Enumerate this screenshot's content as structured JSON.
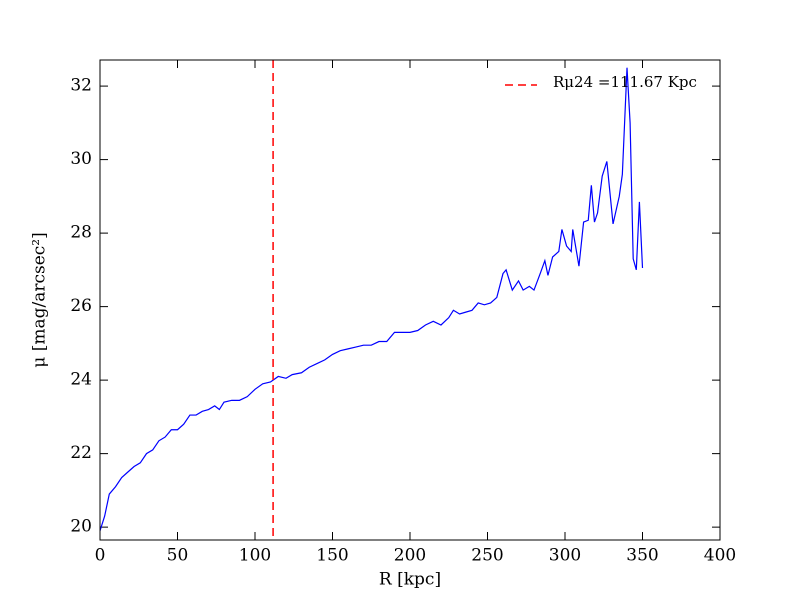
{
  "chart_data": {
    "type": "line",
    "x_label": "R [kpc]",
    "y_label": "μ [mag/arcsec²]",
    "x": [
      0,
      3,
      6,
      10,
      14,
      18,
      22,
      26,
      30,
      34,
      38,
      42,
      46,
      50,
      54,
      58,
      62,
      66,
      70,
      74,
      77,
      80,
      85,
      90,
      95,
      100,
      105,
      110,
      115,
      120,
      124,
      130,
      135,
      140,
      145,
      150,
      155,
      160,
      165,
      170,
      175,
      180,
      185,
      190,
      195,
      200,
      205,
      210,
      215,
      220,
      225,
      228,
      232,
      236,
      240,
      244,
      248,
      252,
      256,
      260,
      262,
      266,
      270,
      273,
      277,
      280,
      284,
      287,
      289,
      292,
      296,
      298,
      301,
      304,
      305,
      309,
      312,
      315,
      317,
      319,
      321,
      324,
      327,
      331,
      335,
      337,
      340,
      342,
      344,
      346,
      348,
      350
    ],
    "series": [
      {
        "color": "#0000ff",
        "values": [
          19.9,
          20.3,
          20.9,
          21.1,
          21.35,
          21.5,
          21.65,
          21.75,
          22.0,
          22.1,
          22.35,
          22.45,
          22.65,
          22.65,
          22.8,
          23.05,
          23.05,
          23.15,
          23.2,
          23.3,
          23.2,
          23.4,
          23.45,
          23.45,
          23.55,
          23.75,
          23.9,
          23.95,
          24.1,
          24.05,
          24.15,
          24.2,
          24.35,
          24.45,
          24.55,
          24.7,
          24.8,
          24.85,
          24.9,
          24.95,
          24.95,
          25.05,
          25.05,
          25.3,
          25.3,
          25.3,
          25.35,
          25.5,
          25.6,
          25.5,
          25.7,
          25.9,
          25.8,
          25.85,
          25.9,
          26.1,
          26.05,
          26.1,
          26.25,
          26.9,
          27.0,
          26.45,
          26.7,
          26.45,
          26.55,
          26.45,
          26.9,
          27.25,
          26.85,
          27.35,
          27.5,
          28.1,
          27.65,
          27.5,
          28.1,
          27.1,
          28.3,
          28.35,
          29.3,
          28.3,
          28.55,
          29.55,
          29.95,
          28.25,
          29.0,
          29.6,
          32.5,
          31.0,
          27.3,
          27.0,
          28.85,
          27.05
        ]
      }
    ],
    "reference_lines": [
      {
        "x": 111.67,
        "name": "Rμ24 =111.67 Kpc",
        "color": "#ff0000"
      }
    ],
    "legend": "upper right",
    "xlim": [
      0,
      400
    ],
    "xticks": [
      0,
      50,
      100,
      150,
      200,
      250,
      300,
      350,
      400
    ],
    "ylim": [
      19.65,
      32.71
    ],
    "yticks": [
      20,
      22,
      24,
      26,
      28,
      30,
      32
    ]
  }
}
